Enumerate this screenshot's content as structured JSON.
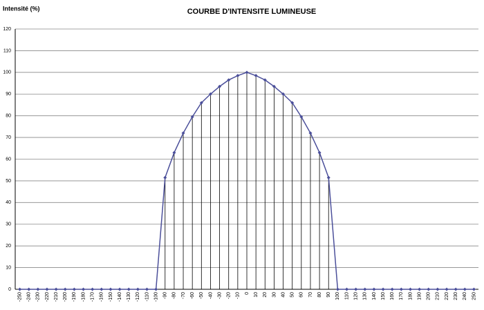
{
  "chart_data": {
    "type": "line",
    "title": "COURBE D'INTENSITE LUMINEUSE",
    "y_label": "Intensité (%)",
    "categories": [
      "-250",
      "-240",
      "-230",
      "-220",
      "-210",
      "-200",
      "-190",
      "-180",
      "-170",
      "-160",
      "-150",
      "-140",
      "-130",
      "-120",
      "-110",
      "-100",
      "-90",
      "-80",
      "-70",
      "-60",
      "-50",
      "-40",
      "-30",
      "-20",
      "-10",
      "0",
      "10",
      "20",
      "30",
      "40",
      "50",
      "60",
      "70",
      "80",
      "90",
      "100",
      "110",
      "120",
      "130",
      "140",
      "150",
      "160",
      "170",
      "180",
      "190",
      "200",
      "210",
      "220",
      "230",
      "240",
      "250"
    ],
    "series": [
      {
        "name": "Intensité",
        "color": "#4b4f9a",
        "values": [
          0,
          0,
          0,
          0,
          0,
          0,
          0,
          0,
          0,
          0,
          0,
          0,
          0,
          0,
          0,
          0,
          51.5,
          63,
          72,
          79.5,
          86,
          90,
          93.5,
          96.5,
          98.5,
          100,
          98.5,
          96.5,
          93.5,
          90,
          86,
          79.5,
          72,
          63,
          51.5,
          0,
          0,
          0,
          0,
          0,
          0,
          0,
          0,
          0,
          0,
          0,
          0,
          0,
          0,
          0,
          0
        ]
      }
    ],
    "ylim": [
      0,
      120
    ],
    "yticks": [
      0,
      10,
      20,
      30,
      40,
      50,
      60,
      70,
      80,
      90,
      100,
      110,
      120
    ],
    "grid": true,
    "drop_lines": true
  }
}
